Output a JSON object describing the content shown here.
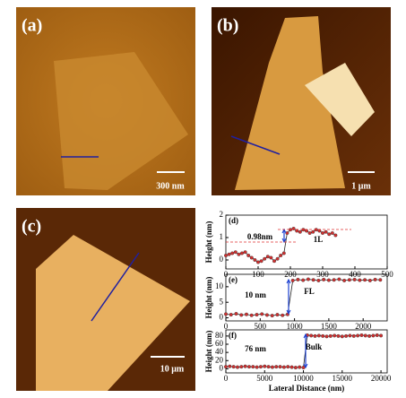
{
  "images": [
    {
      "label": "(a)",
      "scale_bar": "300 nm"
    },
    {
      "label": "(b)",
      "scale_bar": "1 μm"
    },
    {
      "label": "(c)",
      "scale_bar": "10 μm"
    }
  ],
  "chart_data": [
    {
      "type": "line",
      "panel": "(d)",
      "ylabel": "Height (nm)",
      "annotations": [
        "0.98nm",
        "1L"
      ],
      "xlim": [
        0,
        500
      ],
      "xticks": [
        0,
        100,
        200,
        300,
        400,
        500
      ],
      "ylim": [
        -0.4,
        2
      ],
      "yticks": [
        0,
        1,
        2
      ],
      "series": [
        {
          "name": "d",
          "color": "#d03030",
          "x": [
            0,
            10,
            20,
            30,
            40,
            50,
            60,
            70,
            80,
            90,
            100,
            110,
            120,
            130,
            140,
            150,
            160,
            170,
            180,
            190,
            200,
            210,
            220,
            230,
            240,
            250,
            260,
            270,
            280,
            290,
            300,
            310,
            320,
            330,
            340
          ],
          "values": [
            0.2,
            0.25,
            0.3,
            0.35,
            0.25,
            0.3,
            0.35,
            0.2,
            0.1,
            0.0,
            -0.1,
            -0.05,
            0.05,
            0.15,
            0.1,
            -0.05,
            0.05,
            0.2,
            0.3,
            1.2,
            1.35,
            1.4,
            1.3,
            1.25,
            1.35,
            1.3,
            1.2,
            1.25,
            1.35,
            1.3,
            1.2,
            1.25,
            1.15,
            1.2,
            1.1
          ]
        }
      ]
    },
    {
      "type": "line",
      "panel": "(e)",
      "ylabel": "Height (nm)",
      "annotations": [
        "10 nm",
        "FL"
      ],
      "xlim": [
        0,
        2350
      ],
      "xticks": [
        0,
        500,
        1000,
        1500,
        2000
      ],
      "ylim": [
        -1,
        14
      ],
      "yticks": [
        0,
        5,
        10
      ],
      "series": [
        {
          "name": "e",
          "color": "#d03030",
          "x": [
            0,
            75,
            150,
            225,
            300,
            375,
            450,
            525,
            600,
            675,
            750,
            825,
            900,
            975,
            1050,
            1125,
            1200,
            1275,
            1350,
            1425,
            1500,
            1575,
            1650,
            1725,
            1800,
            1875,
            1950,
            2025,
            2100,
            2175,
            2250
          ],
          "values": [
            1.2,
            1.0,
            1.3,
            0.9,
            1.1,
            0.8,
            1.0,
            1.2,
            0.9,
            0.7,
            1.0,
            0.8,
            1.1,
            12.0,
            12.3,
            12.1,
            12.4,
            12.2,
            12.0,
            12.3,
            12.1,
            12.2,
            12.4,
            12.0,
            12.2,
            12.3,
            12.1,
            12.2,
            12.0,
            12.3,
            12.2
          ]
        }
      ]
    },
    {
      "type": "line",
      "panel": "(f)",
      "ylabel": "Height (nm)",
      "xlabel": "Lateral Distance (nm)",
      "annotations": [
        "76 nm",
        "Bulk"
      ],
      "xlim": [
        0,
        20800
      ],
      "xticks": [
        0,
        5000,
        10000,
        15000,
        20000
      ],
      "ylim": [
        -10,
        95
      ],
      "yticks": [
        0,
        20,
        40,
        60,
        80
      ],
      "series": [
        {
          "name": "f",
          "color": "#d03030",
          "x": [
            0,
            500,
            1000,
            1500,
            2000,
            2500,
            3000,
            3500,
            4000,
            4500,
            5000,
            5500,
            6000,
            6500,
            7000,
            7500,
            8000,
            8500,
            9000,
            9500,
            10000,
            10500,
            11000,
            11500,
            12000,
            12500,
            13000,
            13500,
            14000,
            14500,
            15000,
            15500,
            16000,
            16500,
            17000,
            17500,
            18000,
            18500,
            19000,
            19500,
            20000
          ],
          "values": [
            5,
            6,
            5,
            4,
            5,
            6,
            5,
            5,
            4,
            5,
            6,
            5,
            4,
            5,
            5,
            4,
            5,
            4,
            3,
            4,
            3,
            82,
            81,
            80,
            81,
            80,
            79,
            80,
            81,
            80,
            79,
            80,
            81,
            80,
            81,
            82,
            81,
            80,
            81,
            82,
            81
          ]
        }
      ]
    }
  ]
}
